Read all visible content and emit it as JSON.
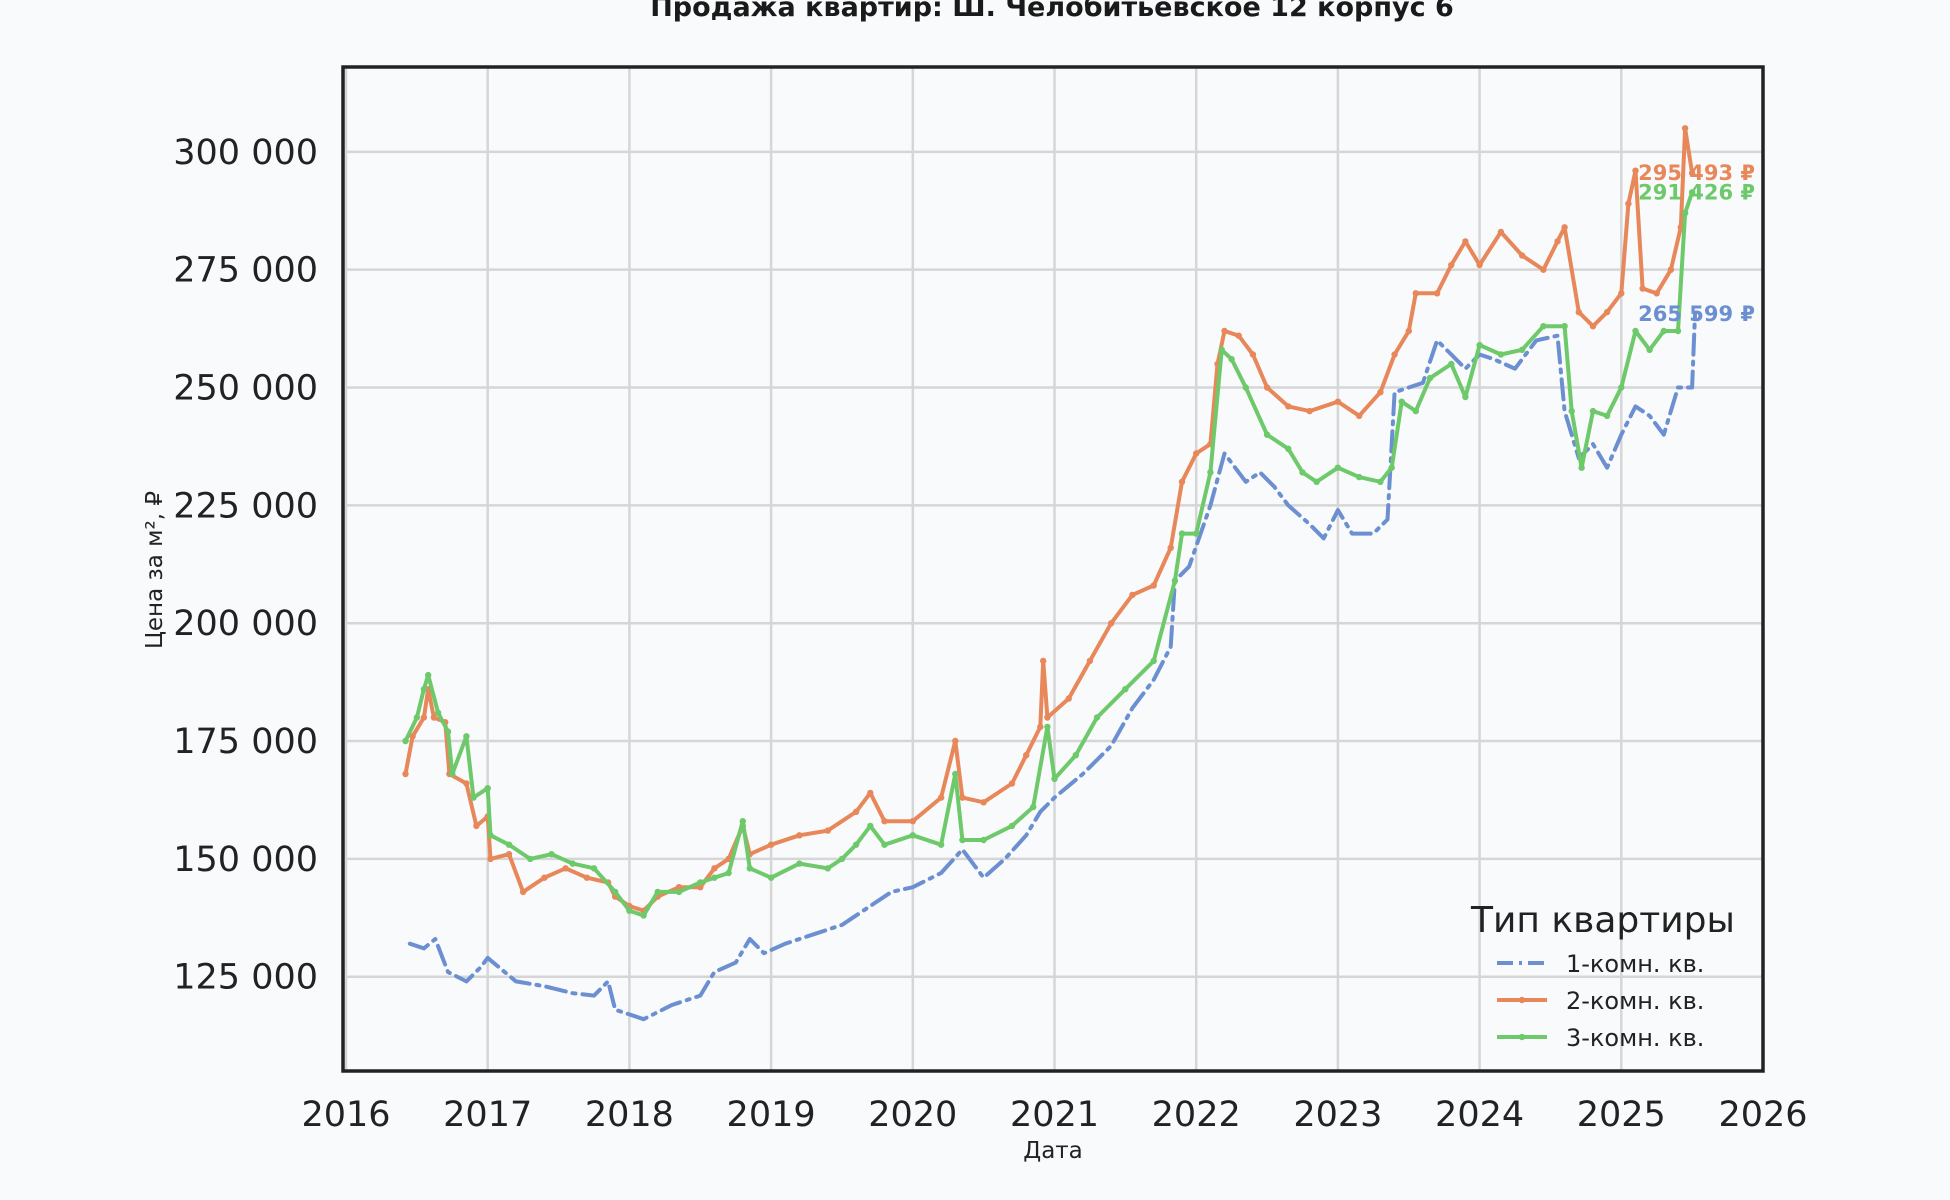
{
  "chart_data": {
    "type": "line",
    "title": "Продажа квартир: Ш. Челобитьевское 12 корпус 6",
    "xlabel": "Дата",
    "ylabel": "Цена за м², ₽",
    "xlim": [
      2016.0,
      2026.0
    ],
    "ylim": [
      105000,
      318000
    ],
    "x_ticks": [
      2016,
      2017,
      2018,
      2019,
      2020,
      2021,
      2022,
      2023,
      2024,
      2025,
      2026
    ],
    "x_tick_labels": [
      "2016",
      "2017",
      "2018",
      "2019",
      "2020",
      "2021",
      "2022",
      "2023",
      "2024",
      "2025",
      "2026"
    ],
    "y_ticks": [
      125000,
      150000,
      175000,
      200000,
      225000,
      250000,
      275000,
      300000
    ],
    "y_tick_labels": [
      "125 000",
      "150 000",
      "175 000",
      "200 000",
      "225 000",
      "250 000",
      "275 000",
      "300 000"
    ],
    "grid": true,
    "legend": {
      "title": "Тип квартиры",
      "position": "bottom-right"
    },
    "series": [
      {
        "name": "1-комн. кв.",
        "color": "#6b8fd0",
        "style": "dashdot",
        "last_label": "265 599 ₽",
        "points": [
          [
            2016.45,
            132000
          ],
          [
            2016.55,
            131000
          ],
          [
            2016.63,
            133000
          ],
          [
            2016.72,
            126000
          ],
          [
            2016.85,
            124000
          ],
          [
            2016.95,
            127000
          ],
          [
            2017.0,
            129000
          ],
          [
            2017.2,
            124000
          ],
          [
            2017.4,
            123000
          ],
          [
            2017.6,
            121500
          ],
          [
            2017.75,
            121000
          ],
          [
            2017.85,
            124000
          ],
          [
            2017.9,
            118000
          ],
          [
            2018.0,
            117000
          ],
          [
            2018.1,
            116000
          ],
          [
            2018.3,
            119000
          ],
          [
            2018.5,
            121000
          ],
          [
            2018.6,
            126000
          ],
          [
            2018.75,
            128000
          ],
          [
            2018.85,
            133000
          ],
          [
            2018.95,
            130000
          ],
          [
            2019.1,
            132000
          ],
          [
            2019.3,
            134000
          ],
          [
            2019.5,
            136000
          ],
          [
            2019.7,
            140000
          ],
          [
            2019.85,
            143000
          ],
          [
            2020.0,
            144000
          ],
          [
            2020.2,
            147000
          ],
          [
            2020.35,
            152000
          ],
          [
            2020.5,
            146000
          ],
          [
            2020.65,
            150000
          ],
          [
            2020.8,
            155000
          ],
          [
            2020.9,
            160000
          ],
          [
            2021.0,
            163000
          ],
          [
            2021.2,
            168000
          ],
          [
            2021.4,
            174000
          ],
          [
            2021.55,
            182000
          ],
          [
            2021.7,
            188000
          ],
          [
            2021.82,
            195000
          ],
          [
            2021.85,
            209000
          ],
          [
            2021.95,
            212000
          ],
          [
            2022.1,
            225000
          ],
          [
            2022.2,
            236000
          ],
          [
            2022.35,
            230000
          ],
          [
            2022.45,
            232000
          ],
          [
            2022.55,
            229000
          ],
          [
            2022.65,
            225000
          ],
          [
            2022.8,
            221000
          ],
          [
            2022.9,
            218000
          ],
          [
            2023.0,
            224000
          ],
          [
            2023.1,
            219000
          ],
          [
            2023.25,
            219000
          ],
          [
            2023.35,
            222000
          ],
          [
            2023.4,
            249000
          ],
          [
            2023.5,
            250000
          ],
          [
            2023.6,
            251000
          ],
          [
            2023.7,
            260000
          ],
          [
            2023.8,
            257000
          ],
          [
            2023.9,
            254000
          ],
          [
            2024.0,
            257000
          ],
          [
            2024.1,
            256000
          ],
          [
            2024.25,
            254000
          ],
          [
            2024.4,
            260000
          ],
          [
            2024.55,
            261000
          ],
          [
            2024.6,
            245000
          ],
          [
            2024.7,
            235000
          ],
          [
            2024.8,
            238000
          ],
          [
            2024.9,
            233000
          ],
          [
            2025.0,
            240000
          ],
          [
            2025.1,
            246000
          ],
          [
            2025.2,
            244000
          ],
          [
            2025.3,
            240000
          ],
          [
            2025.4,
            250000
          ],
          [
            2025.5,
            250000
          ],
          [
            2025.52,
            265599
          ]
        ]
      },
      {
        "name": "2-комн. кв.",
        "color": "#e8875a",
        "style": "solid-marker",
        "last_label": "295 493 ₽",
        "points": [
          [
            2016.42,
            168000
          ],
          [
            2016.47,
            176000
          ],
          [
            2016.55,
            180000
          ],
          [
            2016.58,
            186000
          ],
          [
            2016.62,
            180000
          ],
          [
            2016.7,
            179000
          ],
          [
            2016.73,
            168000
          ],
          [
            2016.85,
            166000
          ],
          [
            2016.92,
            157000
          ],
          [
            2017.0,
            159000
          ],
          [
            2017.02,
            150000
          ],
          [
            2017.15,
            151000
          ],
          [
            2017.25,
            143000
          ],
          [
            2017.4,
            146000
          ],
          [
            2017.55,
            148000
          ],
          [
            2017.7,
            146000
          ],
          [
            2017.85,
            145000
          ],
          [
            2017.9,
            142000
          ],
          [
            2018.0,
            140000
          ],
          [
            2018.1,
            139000
          ],
          [
            2018.2,
            142000
          ],
          [
            2018.35,
            144000
          ],
          [
            2018.5,
            144000
          ],
          [
            2018.6,
            148000
          ],
          [
            2018.7,
            150000
          ],
          [
            2018.8,
            157000
          ],
          [
            2018.85,
            151000
          ],
          [
            2019.0,
            153000
          ],
          [
            2019.2,
            155000
          ],
          [
            2019.4,
            156000
          ],
          [
            2019.6,
            160000
          ],
          [
            2019.7,
            164000
          ],
          [
            2019.8,
            158000
          ],
          [
            2020.0,
            158000
          ],
          [
            2020.2,
            163000
          ],
          [
            2020.3,
            175000
          ],
          [
            2020.35,
            163000
          ],
          [
            2020.5,
            162000
          ],
          [
            2020.7,
            166000
          ],
          [
            2020.8,
            172000
          ],
          [
            2020.9,
            178000
          ],
          [
            2020.92,
            192000
          ],
          [
            2020.95,
            180000
          ],
          [
            2021.1,
            184000
          ],
          [
            2021.25,
            192000
          ],
          [
            2021.4,
            200000
          ],
          [
            2021.55,
            206000
          ],
          [
            2021.7,
            208000
          ],
          [
            2021.82,
            216000
          ],
          [
            2021.9,
            230000
          ],
          [
            2022.0,
            236000
          ],
          [
            2022.1,
            238000
          ],
          [
            2022.15,
            255000
          ],
          [
            2022.2,
            262000
          ],
          [
            2022.3,
            261000
          ],
          [
            2022.4,
            257000
          ],
          [
            2022.5,
            250000
          ],
          [
            2022.65,
            246000
          ],
          [
            2022.8,
            245000
          ],
          [
            2023.0,
            247000
          ],
          [
            2023.15,
            244000
          ],
          [
            2023.3,
            249000
          ],
          [
            2023.4,
            257000
          ],
          [
            2023.5,
            262000
          ],
          [
            2023.55,
            270000
          ],
          [
            2023.7,
            270000
          ],
          [
            2023.8,
            276000
          ],
          [
            2023.9,
            281000
          ],
          [
            2024.0,
            276000
          ],
          [
            2024.15,
            283000
          ],
          [
            2024.3,
            278000
          ],
          [
            2024.45,
            275000
          ],
          [
            2024.55,
            281000
          ],
          [
            2024.6,
            284000
          ],
          [
            2024.7,
            266000
          ],
          [
            2024.8,
            263000
          ],
          [
            2024.9,
            266000
          ],
          [
            2025.0,
            270000
          ],
          [
            2025.05,
            289000
          ],
          [
            2025.1,
            296000
          ],
          [
            2025.15,
            271000
          ],
          [
            2025.25,
            270000
          ],
          [
            2025.35,
            275000
          ],
          [
            2025.42,
            284000
          ],
          [
            2025.45,
            305000
          ],
          [
            2025.5,
            295493
          ]
        ]
      },
      {
        "name": "3-комн. кв.",
        "color": "#6dc96a",
        "style": "solid-marker",
        "last_label": "291 426 ₽",
        "points": [
          [
            2016.42,
            175000
          ],
          [
            2016.5,
            180000
          ],
          [
            2016.55,
            186000
          ],
          [
            2016.58,
            189000
          ],
          [
            2016.65,
            181000
          ],
          [
            2016.72,
            177000
          ],
          [
            2016.75,
            168000
          ],
          [
            2016.85,
            176000
          ],
          [
            2016.9,
            163000
          ],
          [
            2017.0,
            165000
          ],
          [
            2017.02,
            155000
          ],
          [
            2017.15,
            153000
          ],
          [
            2017.3,
            150000
          ],
          [
            2017.45,
            151000
          ],
          [
            2017.6,
            149000
          ],
          [
            2017.75,
            148000
          ],
          [
            2017.9,
            143000
          ],
          [
            2018.0,
            139000
          ],
          [
            2018.1,
            138000
          ],
          [
            2018.2,
            143000
          ],
          [
            2018.35,
            143000
          ],
          [
            2018.5,
            145000
          ],
          [
            2018.6,
            146000
          ],
          [
            2018.7,
            147000
          ],
          [
            2018.8,
            158000
          ],
          [
            2018.85,
            148000
          ],
          [
            2019.0,
            146000
          ],
          [
            2019.2,
            149000
          ],
          [
            2019.4,
            148000
          ],
          [
            2019.5,
            150000
          ],
          [
            2019.6,
            153000
          ],
          [
            2019.7,
            157000
          ],
          [
            2019.8,
            153000
          ],
          [
            2020.0,
            155000
          ],
          [
            2020.2,
            153000
          ],
          [
            2020.3,
            168000
          ],
          [
            2020.35,
            154000
          ],
          [
            2020.5,
            154000
          ],
          [
            2020.7,
            157000
          ],
          [
            2020.85,
            161000
          ],
          [
            2020.95,
            178000
          ],
          [
            2021.0,
            167000
          ],
          [
            2021.15,
            172000
          ],
          [
            2021.3,
            180000
          ],
          [
            2021.5,
            186000
          ],
          [
            2021.7,
            192000
          ],
          [
            2021.85,
            209000
          ],
          [
            2021.9,
            219000
          ],
          [
            2022.0,
            219000
          ],
          [
            2022.1,
            232000
          ],
          [
            2022.18,
            258000
          ],
          [
            2022.25,
            256000
          ],
          [
            2022.35,
            250000
          ],
          [
            2022.5,
            240000
          ],
          [
            2022.65,
            237000
          ],
          [
            2022.75,
            232000
          ],
          [
            2022.85,
            230000
          ],
          [
            2023.0,
            233000
          ],
          [
            2023.15,
            231000
          ],
          [
            2023.3,
            230000
          ],
          [
            2023.38,
            233000
          ],
          [
            2023.45,
            247000
          ],
          [
            2023.55,
            245000
          ],
          [
            2023.65,
            252000
          ],
          [
            2023.8,
            255000
          ],
          [
            2023.9,
            248000
          ],
          [
            2024.0,
            259000
          ],
          [
            2024.15,
            257000
          ],
          [
            2024.3,
            258000
          ],
          [
            2024.45,
            263000
          ],
          [
            2024.6,
            263000
          ],
          [
            2024.65,
            245000
          ],
          [
            2024.72,
            233000
          ],
          [
            2024.8,
            245000
          ],
          [
            2024.9,
            244000
          ],
          [
            2025.0,
            250000
          ],
          [
            2025.1,
            262000
          ],
          [
            2025.2,
            258000
          ],
          [
            2025.3,
            262000
          ],
          [
            2025.4,
            262000
          ],
          [
            2025.45,
            287000
          ],
          [
            2025.5,
            291426
          ]
        ]
      }
    ]
  }
}
